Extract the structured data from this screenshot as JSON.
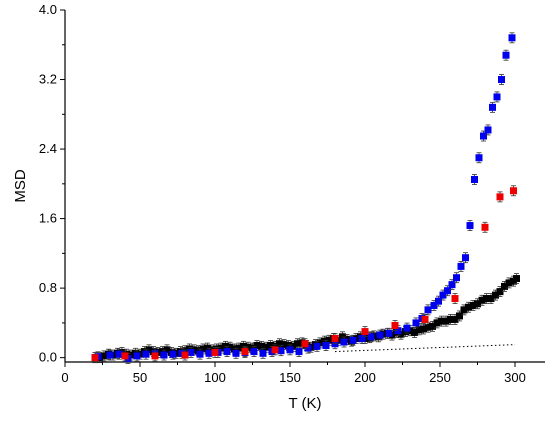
{
  "chart_data": {
    "type": "scatter",
    "title": "",
    "xlabel": "T (K)",
    "ylabel": "MSD",
    "xlim": [
      0,
      320
    ],
    "ylim": [
      -0.05,
      4.0
    ],
    "xticks": [
      0,
      50,
      100,
      150,
      200,
      250,
      300
    ],
    "yticks": [
      0.0,
      0.8,
      1.6,
      2.4,
      3.2,
      4.0
    ],
    "ytick_labels": [
      "0.0",
      "0.8",
      "1.6",
      "2.4",
      "3.2",
      "4.0"
    ],
    "grid": false,
    "legend": "none",
    "series": [
      {
        "marker": "square",
        "color": "#000000",
        "error_bars": true,
        "points": [
          [
            20,
            0.0
          ],
          [
            23,
            0.0
          ],
          [
            26,
            0.02
          ],
          [
            29,
            0.04
          ],
          [
            32,
            0.03
          ],
          [
            35,
            0.05
          ],
          [
            38,
            0.06
          ],
          [
            41,
            0.04
          ],
          [
            44,
            0.03
          ],
          [
            47,
            0.05
          ],
          [
            50,
            0.04
          ],
          [
            53,
            0.07
          ],
          [
            56,
            0.09
          ],
          [
            59,
            0.07
          ],
          [
            62,
            0.06
          ],
          [
            65,
            0.07
          ],
          [
            68,
            0.09
          ],
          [
            71,
            0.06
          ],
          [
            74,
            0.05
          ],
          [
            77,
            0.07
          ],
          [
            80,
            0.08
          ],
          [
            83,
            0.1
          ],
          [
            86,
            0.09
          ],
          [
            89,
            0.08
          ],
          [
            92,
            0.1
          ],
          [
            95,
            0.11
          ],
          [
            98,
            0.09
          ],
          [
            101,
            0.1
          ],
          [
            104,
            0.11
          ],
          [
            107,
            0.13
          ],
          [
            110,
            0.12
          ],
          [
            113,
            0.1
          ],
          [
            116,
            0.11
          ],
          [
            119,
            0.13
          ],
          [
            122,
            0.12
          ],
          [
            125,
            0.11
          ],
          [
            128,
            0.14
          ],
          [
            131,
            0.13
          ],
          [
            134,
            0.12
          ],
          [
            137,
            0.14
          ],
          [
            140,
            0.13
          ],
          [
            143,
            0.16
          ],
          [
            146,
            0.15
          ],
          [
            149,
            0.14
          ],
          [
            152,
            0.13
          ],
          [
            155,
            0.16
          ],
          [
            158,
            0.17
          ],
          [
            161,
            0.14
          ],
          [
            164,
            0.12
          ],
          [
            167,
            0.15
          ],
          [
            170,
            0.17
          ],
          [
            173,
            0.19
          ],
          [
            176,
            0.2
          ],
          [
            179,
            0.22
          ],
          [
            182,
            0.2
          ],
          [
            185,
            0.24
          ],
          [
            188,
            0.21
          ],
          [
            191,
            0.19
          ],
          [
            194,
            0.22
          ],
          [
            197,
            0.24
          ],
          [
            200,
            0.22
          ],
          [
            203,
            0.23
          ],
          [
            206,
            0.25
          ],
          [
            209,
            0.24
          ],
          [
            212,
            0.27
          ],
          [
            215,
            0.28
          ],
          [
            218,
            0.26
          ],
          [
            221,
            0.29
          ],
          [
            224,
            0.27
          ],
          [
            227,
            0.3
          ],
          [
            230,
            0.31
          ],
          [
            233,
            0.29
          ],
          [
            236,
            0.32
          ],
          [
            239,
            0.33
          ],
          [
            242,
            0.35
          ],
          [
            245,
            0.36
          ],
          [
            248,
            0.4
          ],
          [
            251,
            0.42
          ],
          [
            254,
            0.42
          ],
          [
            257,
            0.44
          ],
          [
            260,
            0.44
          ],
          [
            263,
            0.48
          ],
          [
            266,
            0.55
          ],
          [
            269,
            0.58
          ],
          [
            272,
            0.6
          ],
          [
            275,
            0.62
          ],
          [
            278,
            0.66
          ],
          [
            281,
            0.68
          ],
          [
            284,
            0.68
          ],
          [
            287,
            0.72
          ],
          [
            290,
            0.76
          ],
          [
            293,
            0.82
          ],
          [
            296,
            0.86
          ],
          [
            299,
            0.88
          ],
          [
            301,
            0.91
          ]
        ]
      },
      {
        "marker": "square",
        "color": "#0000ee",
        "error_bars": true,
        "points": [
          [
            22,
            0.01
          ],
          [
            30,
            0.03
          ],
          [
            36,
            0.04
          ],
          [
            42,
            -0.01
          ],
          [
            48,
            0.02
          ],
          [
            54,
            0.04
          ],
          [
            60,
            0.05
          ],
          [
            66,
            0.03
          ],
          [
            72,
            0.04
          ],
          [
            78,
            0.05
          ],
          [
            84,
            0.06
          ],
          [
            90,
            0.04
          ],
          [
            96,
            0.05
          ],
          [
            102,
            0.06
          ],
          [
            108,
            0.07
          ],
          [
            114,
            0.05
          ],
          [
            120,
            0.06
          ],
          [
            126,
            0.07
          ],
          [
            132,
            0.05
          ],
          [
            138,
            0.07
          ],
          [
            144,
            0.08
          ],
          [
            150,
            0.09
          ],
          [
            156,
            0.07
          ],
          [
            162,
            0.11
          ],
          [
            168,
            0.13
          ],
          [
            174,
            0.14
          ],
          [
            180,
            0.16
          ],
          [
            186,
            0.18
          ],
          [
            192,
            0.2
          ],
          [
            198,
            0.22
          ],
          [
            204,
            0.24
          ],
          [
            210,
            0.26
          ],
          [
            216,
            0.28
          ],
          [
            222,
            0.31
          ],
          [
            228,
            0.34
          ],
          [
            234,
            0.4
          ],
          [
            238,
            0.45
          ],
          [
            242,
            0.55
          ],
          [
            246,
            0.6
          ],
          [
            249,
            0.65
          ],
          [
            252,
            0.72
          ],
          [
            255,
            0.77
          ],
          [
            258,
            0.84
          ],
          [
            261,
            0.92
          ],
          [
            264,
            1.05
          ],
          [
            267,
            1.15
          ],
          [
            270,
            1.52
          ],
          [
            273,
            2.05
          ],
          [
            276,
            2.3
          ],
          [
            279,
            2.55
          ],
          [
            282,
            2.62
          ],
          [
            285,
            2.88
          ],
          [
            288,
            3.0
          ],
          [
            291,
            3.2
          ],
          [
            294,
            3.48
          ],
          [
            298,
            3.68
          ]
        ]
      },
      {
        "marker": "square",
        "color": "#ee0000",
        "error_bars": true,
        "points": [
          [
            20,
            0.0
          ],
          [
            40,
            0.02
          ],
          [
            60,
            0.02
          ],
          [
            80,
            0.03
          ],
          [
            100,
            0.06
          ],
          [
            120,
            0.07
          ],
          [
            140,
            0.09
          ],
          [
            160,
            0.16
          ],
          [
            180,
            0.22
          ],
          [
            200,
            0.3
          ],
          [
            220,
            0.37
          ],
          [
            240,
            0.44
          ],
          [
            260,
            0.68
          ],
          [
            280,
            1.5
          ],
          [
            290,
            1.85
          ],
          [
            299,
            1.92
          ]
        ]
      }
    ],
    "reference_line": {
      "style": "dotted",
      "color": "#000000",
      "points": [
        [
          180,
          0.07
        ],
        [
          300,
          0.15
        ]
      ]
    }
  }
}
